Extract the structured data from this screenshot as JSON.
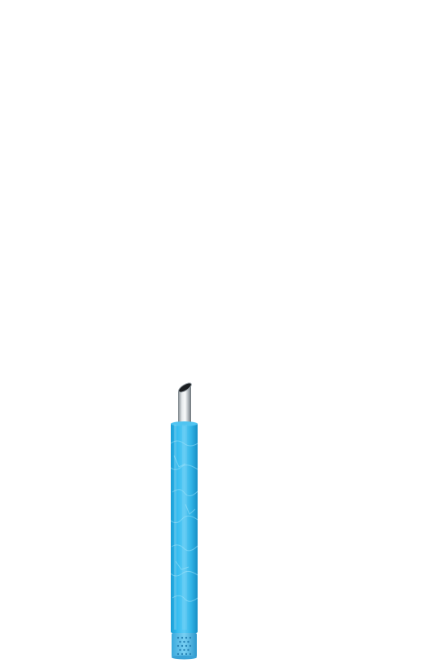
{
  "scene": {
    "background_color": "#ffffff",
    "object": "straw-filter-tube",
    "tube_color": "#2eb6ea",
    "tube_highlight_color": "#7fd8f7",
    "tube_shadow_color": "#1492cc",
    "metal_color": "#c9ced2",
    "metal_dark_color": "#7d858b",
    "metal_light_color": "#f4f6f7",
    "opening_color": "#1a1d20",
    "cap_color": "#55bde9",
    "cap_dot_color": "#2a86b8",
    "icons": [
      "steel-straw-tip-icon",
      "water-texture-icon",
      "perforated-cap-icon"
    ]
  }
}
